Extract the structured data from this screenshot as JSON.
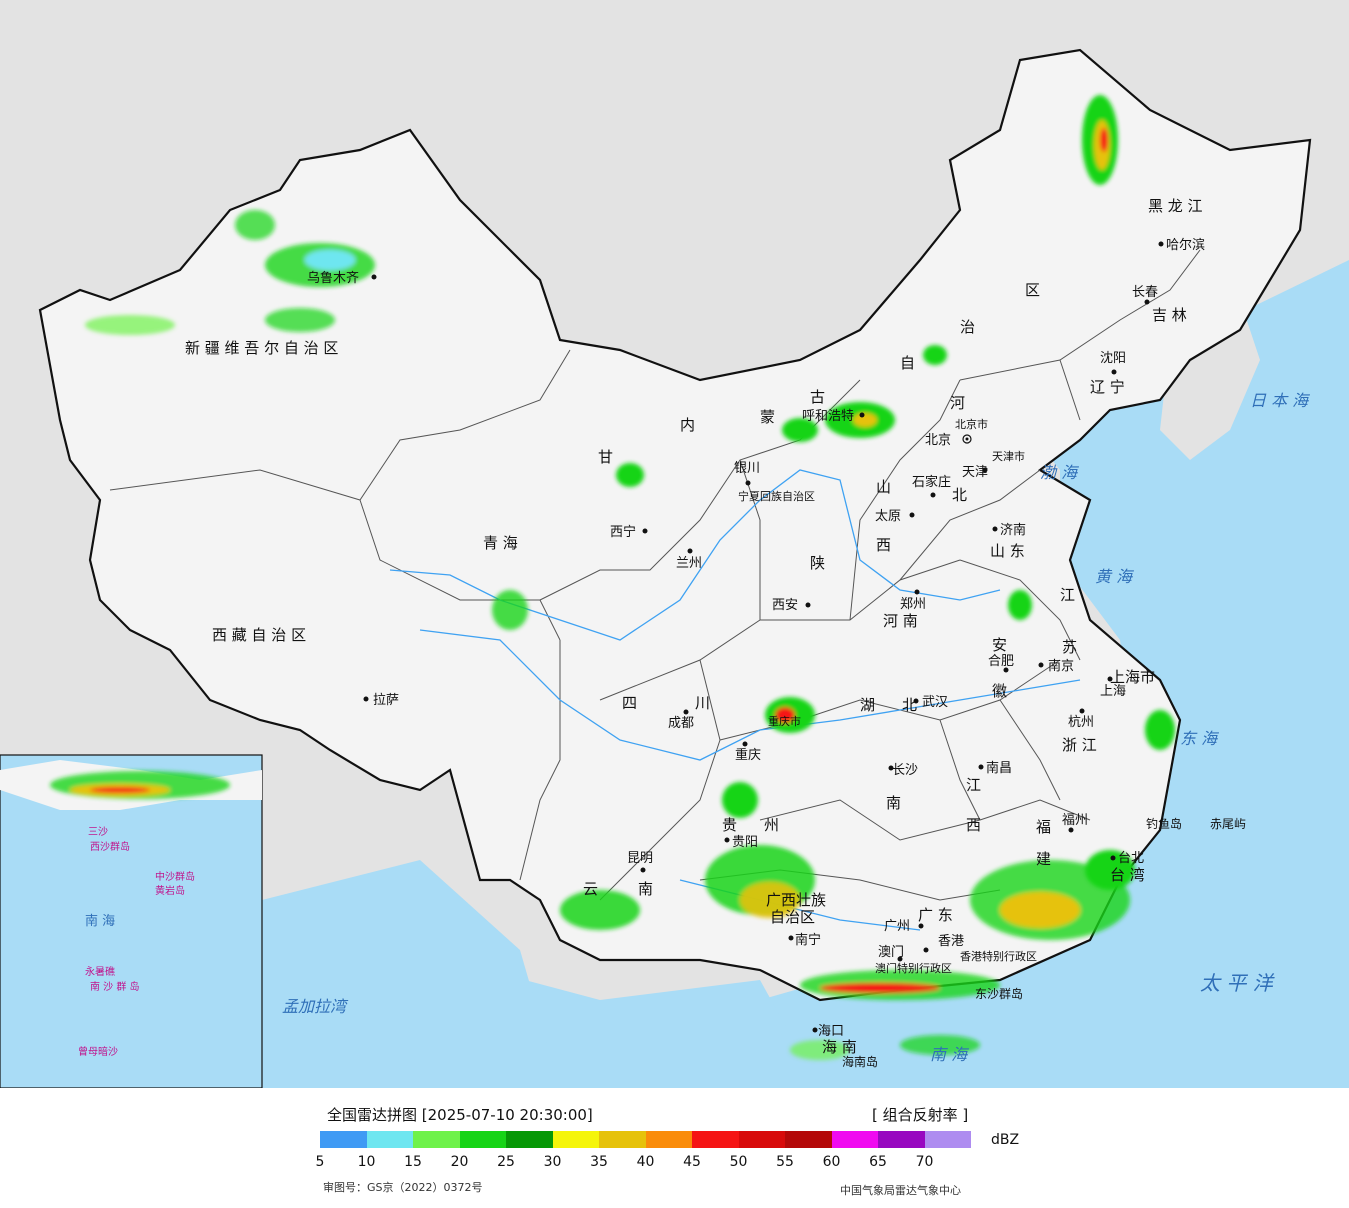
{
  "header": {
    "title": "全国雷达拼图 [2025-07-10 20:30:00]",
    "product": "[ 组合反射率 ]",
    "unit": "dBZ",
    "approval": "审图号：GS京（2022）0372号",
    "source": "中国气象局雷达气象中心"
  },
  "legend": {
    "ticks": [
      "5",
      "10",
      "15",
      "20",
      "25",
      "30",
      "35",
      "40",
      "45",
      "50",
      "55",
      "60",
      "65",
      "70"
    ],
    "colors": [
      "#3f9af4",
      "#6ee6f0",
      "#6ef24a",
      "#16d416",
      "#069806",
      "#f5f50a",
      "#e6c20a",
      "#fa8c0a",
      "#f51414",
      "#d80a0a",
      "#b40808",
      "#f00af0",
      "#9808c0",
      "#ae8cf0"
    ]
  },
  "regions": [
    "新 疆 维 吾 尔 自 治 区",
    "西 藏 自 治 区",
    "青 海",
    "甘",
    "内",
    "蒙",
    "古",
    "自",
    "治",
    "区",
    "黑 龙 江",
    "吉 林",
    "辽 宁",
    "河",
    "北",
    "山",
    "西",
    "陕",
    "四",
    "川",
    "云",
    "南",
    "贵",
    "州",
    "广西壮族",
    "自治区",
    "广 东",
    "海 南",
    "湖",
    "北",
    "南",
    "江",
    "西",
    "安",
    "徽",
    "山 东",
    "江",
    "苏",
    "浙 江",
    "福",
    "建",
    "台 湾",
    "河 南",
    "宁夏回族自治区",
    "重庆市",
    "上海市",
    "北京市",
    "天津市",
    "香港特别行政区",
    "澳门特别行政区"
  ],
  "cities": [
    "乌鲁木齐",
    "拉萨",
    "西宁",
    "兰州",
    "银川",
    "呼和浩特",
    "北京",
    "天津",
    "石家庄",
    "太原",
    "济南",
    "郑州",
    "西安",
    "成都",
    "重庆",
    "武汉",
    "合肥",
    "南京",
    "上海",
    "杭州",
    "长沙",
    "南昌",
    "福州",
    "贵阳",
    "昆明",
    "南宁",
    "广州",
    "香港",
    "澳门",
    "海口",
    "台北",
    "哈尔滨",
    "长春",
    "沈阳"
  ],
  "seas": [
    "日 本 海",
    "渤 海",
    "黄 海",
    "东 海",
    "太 平 洋",
    "南 海",
    "孟加拉湾"
  ],
  "islands": [
    "钓鱼岛",
    "赤尾屿",
    "海南岛",
    "东沙群岛"
  ],
  "inset": {
    "labels": [
      "南 海",
      "中沙群岛",
      "黄岩岛",
      "永暑礁",
      "南 沙 群 岛",
      "西沙群岛",
      "曾母暗沙",
      "三沙"
    ]
  }
}
